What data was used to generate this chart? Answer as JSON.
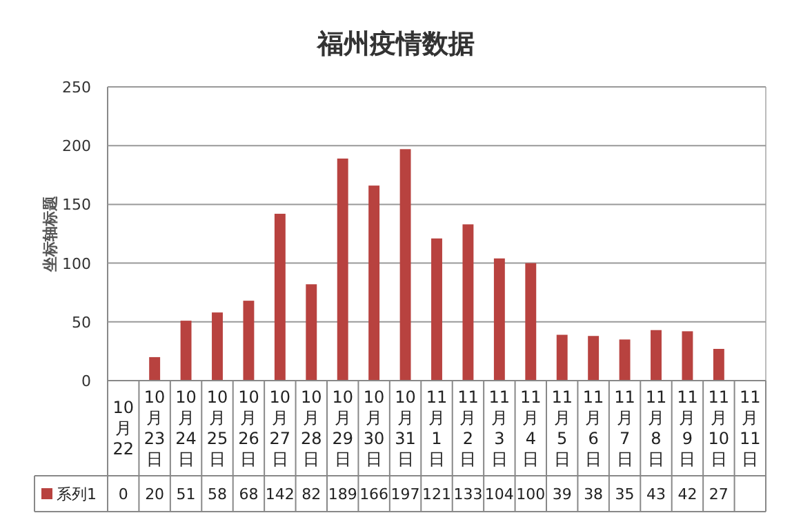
{
  "chart_data": {
    "type": "bar",
    "title": "福州疫情数据",
    "ylabel": "坐标轴标题",
    "categories": [
      "10月22",
      "10月23日",
      "10月24日",
      "10月25日",
      "10月26日",
      "10月27日",
      "10月28日",
      "10月29日",
      "10月30日",
      "10月31日",
      "11月1日",
      "11月2日",
      "11月3日",
      "11月4日",
      "11月5日",
      "11月6日",
      "11月7日",
      "11月8日",
      "11月9日",
      "11月10日",
      "11月11日"
    ],
    "series": [
      {
        "name": "系列1",
        "color": "#b8423f",
        "values": [
          0,
          20,
          51,
          58,
          68,
          142,
          82,
          189,
          166,
          197,
          121,
          133,
          104,
          100,
          39,
          38,
          35,
          43,
          42,
          27,
          null
        ]
      }
    ],
    "ylim": [
      0,
      250
    ],
    "yticks": [
      0,
      50,
      100,
      150,
      200,
      250
    ],
    "grid": "y",
    "legend": "bottom",
    "data_labels": true
  }
}
